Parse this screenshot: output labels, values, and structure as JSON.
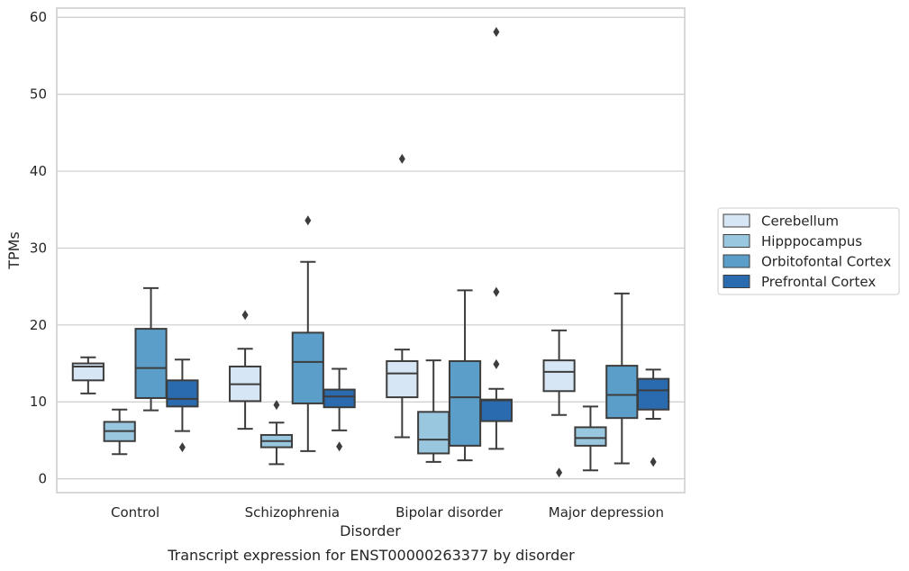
{
  "chart_data": {
    "type": "box",
    "title": "",
    "caption": "Transcript expression for ENST00000263377 by disorder",
    "xlabel": "Disorder",
    "ylabel": "TPMs",
    "ylim": [
      -1.8,
      61.2
    ],
    "yticks": [
      0,
      10,
      20,
      30,
      40,
      50,
      60
    ],
    "grid": "horizontal",
    "legend_position": "right",
    "categories": [
      "Control",
      "Schizophrenia",
      "Bipolar disorder",
      "Major depression"
    ],
    "series": [
      {
        "name": "Cerebellum",
        "color": "#d6e6f4",
        "boxes": [
          {
            "whislo": 11.1,
            "q1": 12.8,
            "med": 14.6,
            "q3": 15.0,
            "whishi": 15.8,
            "fliers": []
          },
          {
            "whislo": 6.5,
            "q1": 10.1,
            "med": 12.3,
            "q3": 14.6,
            "whishi": 16.9,
            "fliers": [
              21.3
            ]
          },
          {
            "whislo": 5.4,
            "q1": 10.6,
            "med": 13.7,
            "q3": 15.3,
            "whishi": 16.8,
            "fliers": [
              41.6
            ]
          },
          {
            "whislo": 8.3,
            "q1": 11.4,
            "med": 13.9,
            "q3": 15.4,
            "whishi": 19.3,
            "fliers": [
              0.8
            ]
          }
        ]
      },
      {
        "name": "Hipppocampus",
        "color": "#9ac7e0",
        "boxes": [
          {
            "whislo": 3.2,
            "q1": 4.9,
            "med": 6.2,
            "q3": 7.4,
            "whishi": 9.0,
            "fliers": []
          },
          {
            "whislo": 1.9,
            "q1": 4.1,
            "med": 4.9,
            "q3": 5.7,
            "whishi": 7.3,
            "fliers": [
              9.6
            ]
          },
          {
            "whislo": 2.2,
            "q1": 3.3,
            "med": 5.1,
            "q3": 8.7,
            "whishi": 15.4,
            "fliers": []
          },
          {
            "whislo": 1.1,
            "q1": 4.3,
            "med": 5.3,
            "q3": 6.7,
            "whishi": 9.4,
            "fliers": []
          }
        ]
      },
      {
        "name": "Orbitofontal Cortex",
        "color": "#5a9ec9",
        "boxes": [
          {
            "whislo": 8.9,
            "q1": 10.5,
            "med": 14.4,
            "q3": 19.5,
            "whishi": 24.8,
            "fliers": []
          },
          {
            "whislo": 3.6,
            "q1": 9.8,
            "med": 15.2,
            "q3": 19.0,
            "whishi": 28.2,
            "fliers": [
              33.6
            ]
          },
          {
            "whislo": 2.4,
            "q1": 4.3,
            "med": 10.6,
            "q3": 15.3,
            "whishi": 24.5,
            "fliers": []
          },
          {
            "whislo": 2.0,
            "q1": 7.9,
            "med": 10.9,
            "q3": 14.7,
            "whishi": 24.1,
            "fliers": []
          }
        ]
      },
      {
        "name": "Prefrontal Cortex",
        "color": "#2a6aae",
        "boxes": [
          {
            "whislo": 6.2,
            "q1": 9.4,
            "med": 10.4,
            "q3": 12.8,
            "whishi": 15.5,
            "fliers": [
              4.1
            ]
          },
          {
            "whislo": 6.3,
            "q1": 9.3,
            "med": 10.7,
            "q3": 11.6,
            "whishi": 14.3,
            "fliers": [
              4.2
            ]
          },
          {
            "whislo": 3.9,
            "q1": 7.5,
            "med": 10.2,
            "q3": 10.3,
            "whishi": 11.7,
            "fliers": [
              14.9,
              24.3,
              58.1
            ]
          },
          {
            "whislo": 7.8,
            "q1": 9.0,
            "med": 11.5,
            "q3": 13.0,
            "whishi": 14.2,
            "fliers": [
              2.2
            ]
          }
        ]
      }
    ]
  }
}
